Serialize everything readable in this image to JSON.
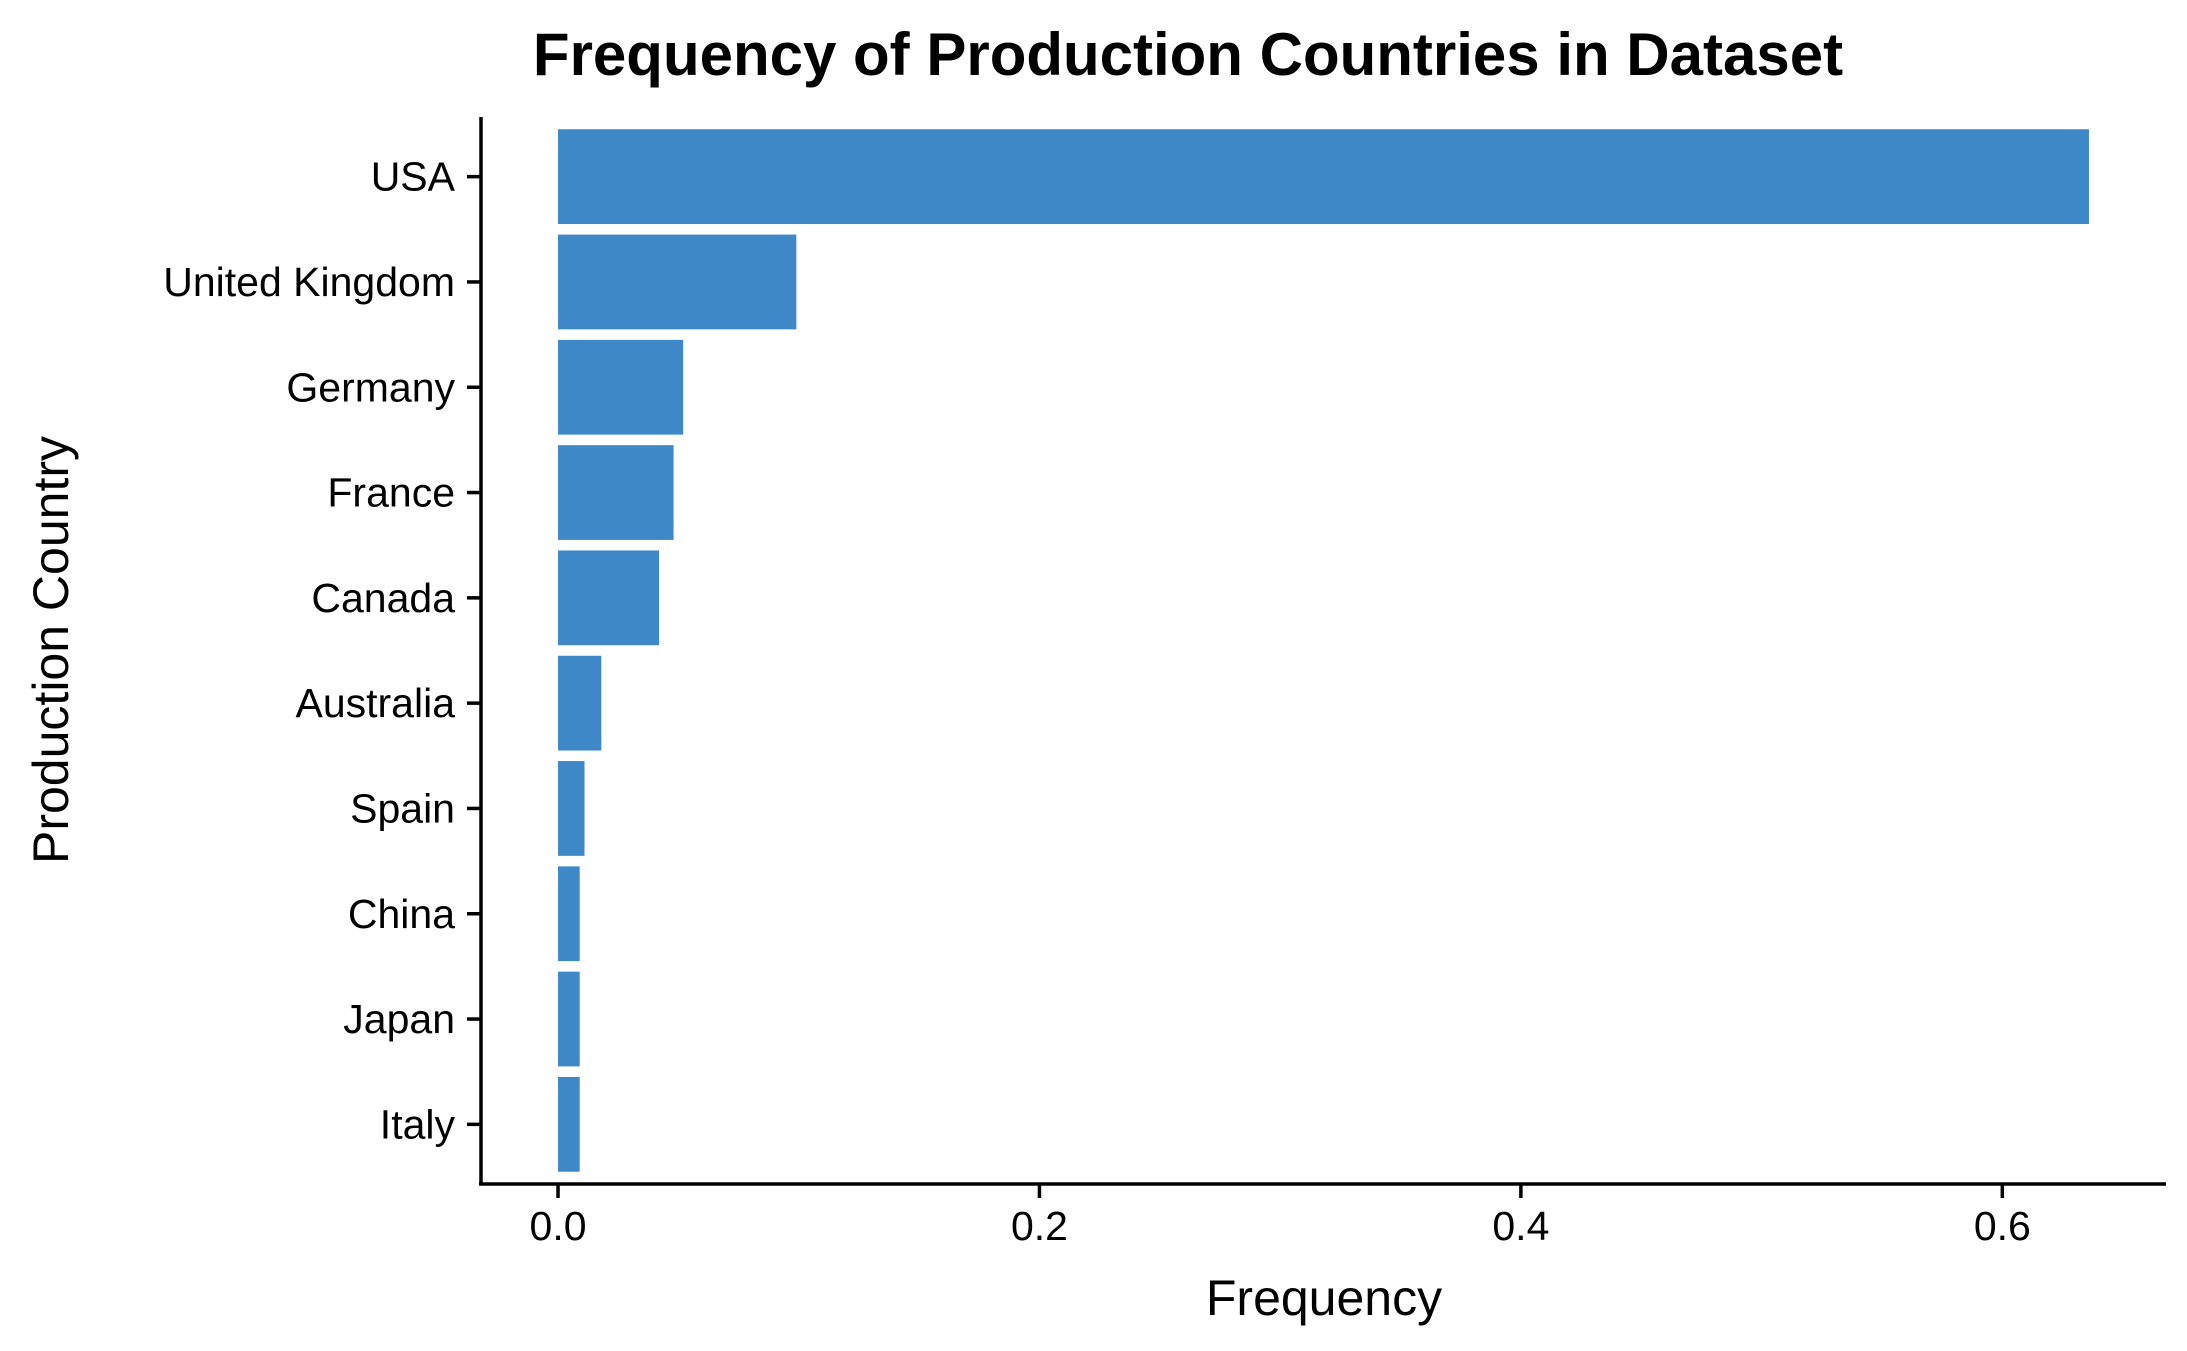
{
  "chart_data": {
    "type": "bar",
    "orientation": "horizontal",
    "title": "Frequency of Production Countries in Dataset",
    "xlabel": "Frequency",
    "ylabel": "Production Country",
    "categories": [
      "USA",
      "United Kingdom",
      "Germany",
      "France",
      "Canada",
      "Australia",
      "Spain",
      "China",
      "Japan",
      "Italy"
    ],
    "values": [
      0.636,
      0.099,
      0.052,
      0.048,
      0.042,
      0.018,
      0.011,
      0.009,
      0.009,
      0.009
    ],
    "xlim": [
      -0.032,
      0.668
    ],
    "xticks": [
      0.0,
      0.2,
      0.4,
      0.6
    ],
    "xtick_labels": [
      "0.0",
      "0.2",
      "0.4",
      "0.6"
    ],
    "grid": false,
    "legend": "none",
    "bar_color": "#3f88c8"
  }
}
